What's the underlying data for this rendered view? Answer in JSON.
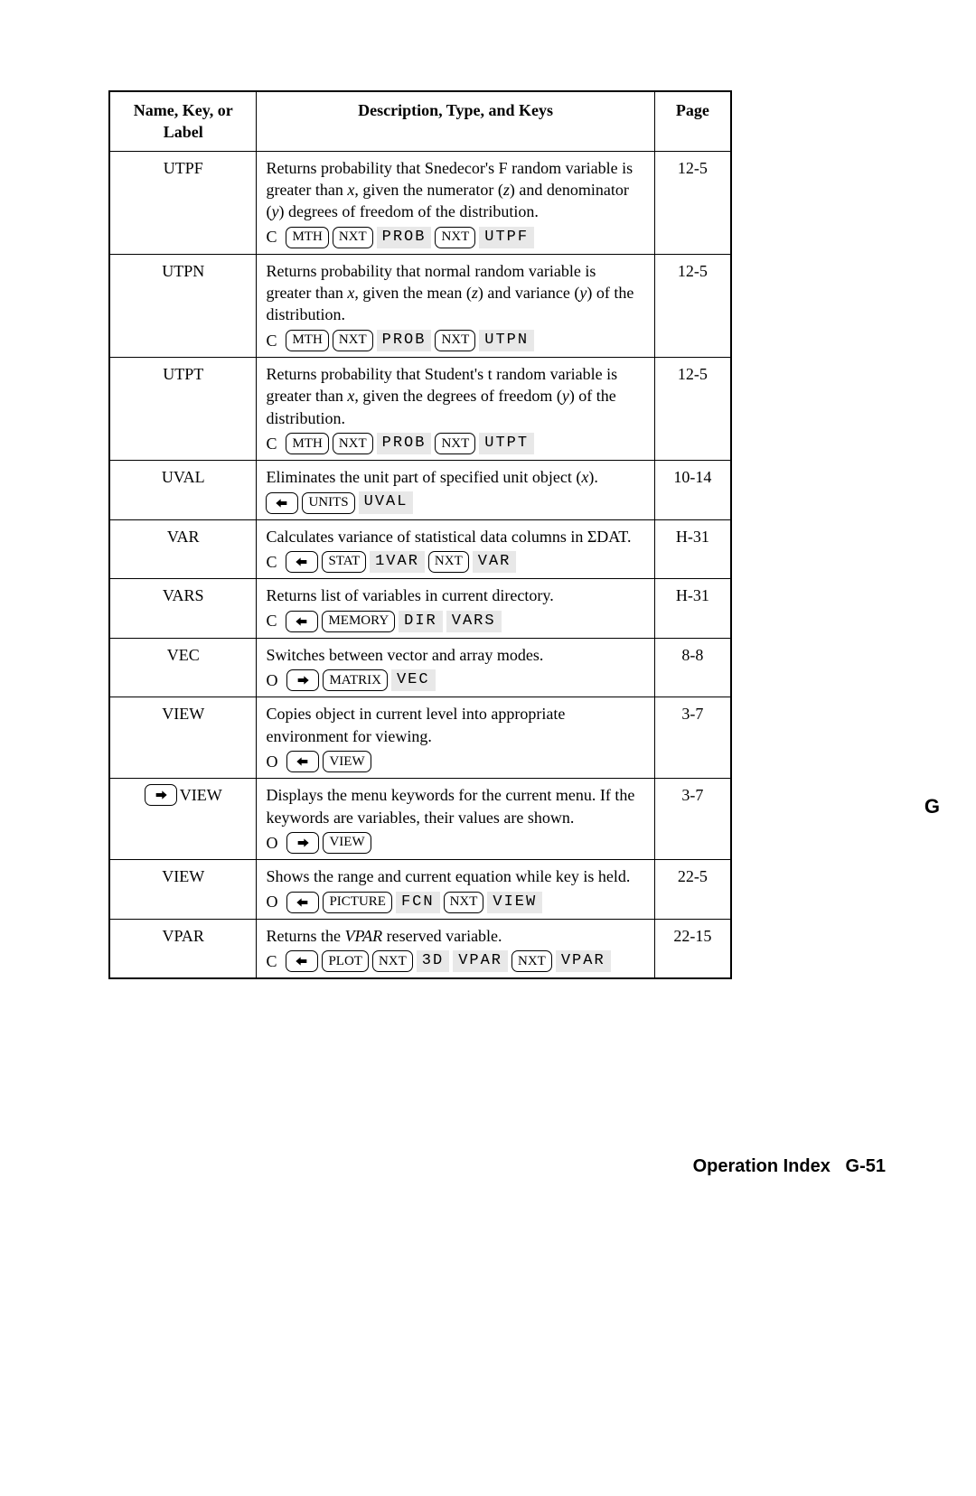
{
  "headers": {
    "name": "Name, Key, or Label",
    "desc": "Description, Type, and Keys",
    "page": "Page"
  },
  "rows": [
    {
      "name": "UTPF",
      "name_has_shift": null,
      "desc_html": "Returns probability that Snedecor's F random variable is greater than <span class='italic'>x</span>, given the numerator (<span class='italic'>z</span>) and denominator (<span class='italic'>y</span>) degrees of freedom of the distribution.",
      "type": "C",
      "keys": [
        {
          "kind": "keycap",
          "label": "MTH"
        },
        {
          "kind": "keycap",
          "label": "NXT"
        },
        {
          "kind": "soft",
          "label": "PROB"
        },
        {
          "kind": "keycap",
          "label": "NXT"
        },
        {
          "kind": "soft",
          "label": "UTPF"
        }
      ],
      "page": "12-5"
    },
    {
      "name": "UTPN",
      "name_has_shift": null,
      "desc_html": "Returns probability that normal random variable is greater than <span class='italic'>x</span>, given the mean (<span class='italic'>z</span>) and variance (<span class='italic'>y</span>) of the distribution.",
      "type": "C",
      "keys": [
        {
          "kind": "keycap",
          "label": "MTH"
        },
        {
          "kind": "keycap",
          "label": "NXT"
        },
        {
          "kind": "soft",
          "label": "PROB"
        },
        {
          "kind": "keycap",
          "label": "NXT"
        },
        {
          "kind": "soft",
          "label": "UTPN"
        }
      ],
      "page": "12-5"
    },
    {
      "name": "UTPT",
      "name_has_shift": null,
      "desc_html": "Returns probability that Student's t random variable is greater than <span class='italic'>x</span>, given the degrees of freedom (<span class='italic'>y</span>) of the distribution.",
      "type": "C",
      "keys": [
        {
          "kind": "keycap",
          "label": "MTH"
        },
        {
          "kind": "keycap",
          "label": "NXT"
        },
        {
          "kind": "soft",
          "label": "PROB"
        },
        {
          "kind": "keycap",
          "label": "NXT"
        },
        {
          "kind": "soft",
          "label": "UTPT"
        }
      ],
      "page": "12-5"
    },
    {
      "name": "UVAL",
      "name_has_shift": null,
      "desc_html": "Eliminates the unit part of specified unit object (<span class='italic'>x</span>).",
      "type": "",
      "keys": [
        {
          "kind": "shift-left"
        },
        {
          "kind": "keycap",
          "label": "UNITS"
        },
        {
          "kind": "soft",
          "label": "UVAL"
        }
      ],
      "page": "10-14"
    },
    {
      "name": "VAR",
      "name_has_shift": null,
      "desc_html": "Calculates variance of statistical data columns in &Sigma;DAT.",
      "type": "C",
      "keys": [
        {
          "kind": "shift-left"
        },
        {
          "kind": "keycap",
          "label": "STAT"
        },
        {
          "kind": "soft",
          "label": "1VAR"
        },
        {
          "kind": "keycap",
          "label": "NXT"
        },
        {
          "kind": "soft",
          "label": "VAR"
        }
      ],
      "page": "H-31"
    },
    {
      "name": "VARS",
      "name_has_shift": null,
      "desc_html": "Returns list of variables in current directory.",
      "type": "C",
      "keys": [
        {
          "kind": "shift-left"
        },
        {
          "kind": "keycap",
          "label": "MEMORY"
        },
        {
          "kind": "soft",
          "label": "DIR"
        },
        {
          "kind": "soft",
          "label": "VARS"
        }
      ],
      "page": "H-31"
    },
    {
      "name": "VEC",
      "name_has_shift": null,
      "desc_html": "Switches between vector and array modes.",
      "type": "O",
      "keys": [
        {
          "kind": "shift-right"
        },
        {
          "kind": "keycap",
          "label": "MATRIX"
        },
        {
          "kind": "soft",
          "label": "VEC"
        }
      ],
      "page": "8-8"
    },
    {
      "name": "VIEW",
      "name_has_shift": null,
      "desc_html": "Copies object in current level into appropriate environment for viewing.",
      "type": "O",
      "keys": [
        {
          "kind": "shift-left"
        },
        {
          "kind": "keycap",
          "label": "VIEW"
        }
      ],
      "page": "3-7"
    },
    {
      "name": "VIEW",
      "name_has_shift": "right",
      "desc_html": "Displays the menu keywords for the current menu. If the keywords are variables, their values are shown.",
      "type": "O",
      "keys": [
        {
          "kind": "shift-right"
        },
        {
          "kind": "keycap",
          "label": "VIEW"
        }
      ],
      "page": "3-7"
    },
    {
      "name": "VIEW",
      "name_has_shift": null,
      "desc_html": "Shows the range and current equation while key is held.",
      "type": "O",
      "keys": [
        {
          "kind": "shift-left"
        },
        {
          "kind": "keycap",
          "label": "PICTURE"
        },
        {
          "kind": "soft",
          "label": "FCN"
        },
        {
          "kind": "keycap",
          "label": "NXT"
        },
        {
          "kind": "soft",
          "label": "VIEW"
        }
      ],
      "page": "22-5"
    },
    {
      "name": "VPAR",
      "name_has_shift": null,
      "desc_html": "Returns the <span class='italic'>VPAR</span> reserved variable.",
      "type": "C",
      "keys": [
        {
          "kind": "shift-left"
        },
        {
          "kind": "keycap",
          "label": "PLOT"
        },
        {
          "kind": "keycap",
          "label": "NXT"
        },
        {
          "kind": "soft",
          "label": "3D"
        },
        {
          "kind": "soft",
          "label": "VPAR"
        },
        {
          "kind": "keycap",
          "label": "NXT"
        },
        {
          "kind": "soft",
          "label": "VPAR"
        }
      ],
      "page": "22-15"
    }
  ],
  "section_tab": "G",
  "footer_title": "Operation Index",
  "footer_page": "G-51"
}
